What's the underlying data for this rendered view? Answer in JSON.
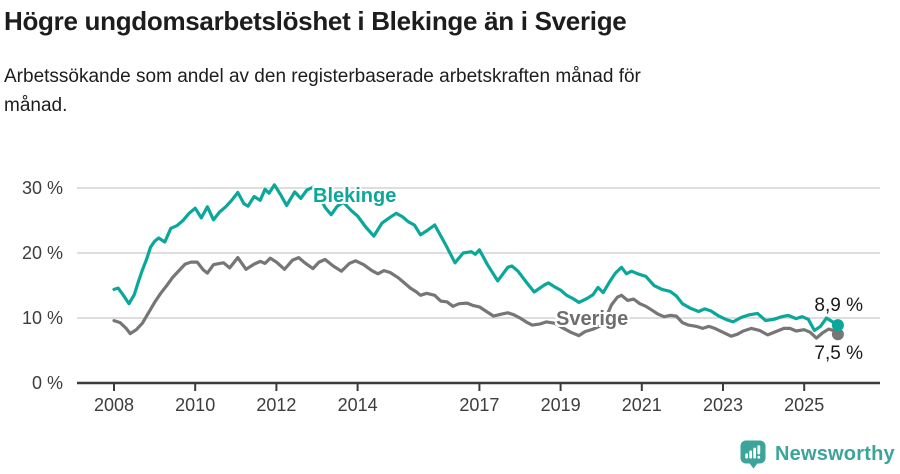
{
  "header": {
    "title": "Högre ungdomsarbetslöshet i Blekinge än i Sverige",
    "subtitle_line1": "Arbetssökande som andel av den registerbaserade arbetskraften månad för",
    "subtitle_line2": "månad."
  },
  "chart_data": {
    "type": "line",
    "unit": "%",
    "grid": "horizontal",
    "x_range": [
      2008,
      2026.0
    ],
    "ylim": [
      0,
      32
    ],
    "x_axis": {
      "ticks": [
        {
          "label": "2008",
          "value": 2008
        },
        {
          "label": "2010",
          "value": 2010
        },
        {
          "label": "2012",
          "value": 2012
        },
        {
          "label": "2014",
          "value": 2014
        },
        {
          "label": "2017",
          "value": 2017
        },
        {
          "label": "2019",
          "value": 2019
        },
        {
          "label": "2021",
          "value": 2021
        },
        {
          "label": "2023",
          "value": 2023
        },
        {
          "label": "2025",
          "value": 2025
        }
      ]
    },
    "y_axis": {
      "ticks": [
        {
          "label": "30 %",
          "value": 30
        },
        {
          "label": "20 %",
          "value": 20
        },
        {
          "label": "10 %",
          "value": 10
        },
        {
          "label": "0 %",
          "value": 0
        }
      ]
    },
    "colors": {
      "blekinge": "#0ca79b",
      "sverige": "#767676",
      "gridline": "#dadada",
      "axis": "#3c3c3c"
    },
    "series": [
      {
        "name": "Blekinge",
        "color": "#0ca79b",
        "end_label": "8,9 %",
        "end_value": 8.9,
        "points": [
          [
            2008.0,
            14.4
          ],
          [
            2008.1,
            14.6
          ],
          [
            2008.22,
            13.6
          ],
          [
            2008.37,
            12.2
          ],
          [
            2008.5,
            13.6
          ],
          [
            2008.6,
            15.6
          ],
          [
            2008.7,
            17.4
          ],
          [
            2008.8,
            19.0
          ],
          [
            2008.9,
            20.9
          ],
          [
            2009.0,
            21.8
          ],
          [
            2009.1,
            22.3
          ],
          [
            2009.25,
            21.7
          ],
          [
            2009.4,
            23.8
          ],
          [
            2009.55,
            24.2
          ],
          [
            2009.7,
            25.0
          ],
          [
            2009.85,
            26.1
          ],
          [
            2010.0,
            26.9
          ],
          [
            2010.15,
            25.4
          ],
          [
            2010.3,
            27.1
          ],
          [
            2010.45,
            25.1
          ],
          [
            2010.6,
            26.3
          ],
          [
            2010.75,
            27.1
          ],
          [
            2010.9,
            28.1
          ],
          [
            2011.05,
            29.3
          ],
          [
            2011.2,
            27.6
          ],
          [
            2011.3,
            27.2
          ],
          [
            2011.45,
            28.7
          ],
          [
            2011.6,
            28.1
          ],
          [
            2011.72,
            29.8
          ],
          [
            2011.82,
            29.2
          ],
          [
            2011.95,
            30.5
          ],
          [
            2012.1,
            29.0
          ],
          [
            2012.25,
            27.3
          ],
          [
            2012.45,
            29.4
          ],
          [
            2012.6,
            28.4
          ],
          [
            2012.75,
            29.7
          ],
          [
            2012.9,
            30.1
          ],
          [
            2013.05,
            28.9
          ],
          [
            2013.2,
            27.0
          ],
          [
            2013.35,
            25.9
          ],
          [
            2013.5,
            27.2
          ],
          [
            2013.65,
            27.8
          ],
          [
            2013.85,
            26.5
          ],
          [
            2014.0,
            25.7
          ],
          [
            2014.2,
            24.0
          ],
          [
            2014.4,
            22.6
          ],
          [
            2014.6,
            24.6
          ],
          [
            2014.8,
            25.5
          ],
          [
            2014.95,
            26.1
          ],
          [
            2015.1,
            25.6
          ],
          [
            2015.25,
            24.8
          ],
          [
            2015.4,
            24.3
          ],
          [
            2015.55,
            22.8
          ],
          [
            2015.7,
            23.4
          ],
          [
            2015.9,
            24.3
          ],
          [
            2016.15,
            21.5
          ],
          [
            2016.4,
            18.5
          ],
          [
            2016.6,
            20.0
          ],
          [
            2016.8,
            20.2
          ],
          [
            2016.9,
            19.8
          ],
          [
            2017.0,
            20.5
          ],
          [
            2017.2,
            18.2
          ],
          [
            2017.45,
            15.7
          ],
          [
            2017.7,
            17.8
          ],
          [
            2017.8,
            18.0
          ],
          [
            2017.95,
            17.2
          ],
          [
            2018.17,
            15.4
          ],
          [
            2018.35,
            14.0
          ],
          [
            2018.6,
            15.1
          ],
          [
            2018.7,
            15.4
          ],
          [
            2018.85,
            14.8
          ],
          [
            2019.0,
            14.3
          ],
          [
            2019.15,
            13.5
          ],
          [
            2019.3,
            13.0
          ],
          [
            2019.45,
            12.4
          ],
          [
            2019.65,
            13.0
          ],
          [
            2019.8,
            13.6
          ],
          [
            2019.92,
            14.7
          ],
          [
            2020.05,
            13.9
          ],
          [
            2020.2,
            15.5
          ],
          [
            2020.35,
            16.9
          ],
          [
            2020.5,
            17.8
          ],
          [
            2020.62,
            16.8
          ],
          [
            2020.75,
            17.2
          ],
          [
            2020.9,
            16.8
          ],
          [
            2021.1,
            16.4
          ],
          [
            2021.3,
            15.0
          ],
          [
            2021.5,
            14.4
          ],
          [
            2021.7,
            14.1
          ],
          [
            2021.85,
            13.4
          ],
          [
            2022.0,
            12.2
          ],
          [
            2022.2,
            11.5
          ],
          [
            2022.4,
            11.0
          ],
          [
            2022.55,
            11.4
          ],
          [
            2022.7,
            11.1
          ],
          [
            2022.9,
            10.3
          ],
          [
            2023.1,
            9.7
          ],
          [
            2023.25,
            9.4
          ],
          [
            2023.45,
            10.1
          ],
          [
            2023.65,
            10.5
          ],
          [
            2023.85,
            10.7
          ],
          [
            2024.05,
            9.6
          ],
          [
            2024.25,
            9.8
          ],
          [
            2024.45,
            10.2
          ],
          [
            2024.6,
            10.4
          ],
          [
            2024.8,
            9.9
          ],
          [
            2024.95,
            10.2
          ],
          [
            2025.1,
            9.8
          ],
          [
            2025.25,
            8.1
          ],
          [
            2025.4,
            8.7
          ],
          [
            2025.55,
            10.0
          ],
          [
            2025.7,
            9.4
          ],
          [
            2025.83,
            8.9
          ]
        ]
      },
      {
        "name": "Sverige",
        "color": "#767676",
        "end_label": "7,5 %",
        "end_value": 7.5,
        "points": [
          [
            2008.0,
            9.6
          ],
          [
            2008.15,
            9.3
          ],
          [
            2008.3,
            8.4
          ],
          [
            2008.4,
            7.6
          ],
          [
            2008.55,
            8.2
          ],
          [
            2008.7,
            9.2
          ],
          [
            2008.85,
            10.8
          ],
          [
            2009.0,
            12.4
          ],
          [
            2009.15,
            13.8
          ],
          [
            2009.3,
            15.0
          ],
          [
            2009.45,
            16.3
          ],
          [
            2009.6,
            17.3
          ],
          [
            2009.75,
            18.3
          ],
          [
            2009.9,
            18.6
          ],
          [
            2010.05,
            18.6
          ],
          [
            2010.2,
            17.4
          ],
          [
            2010.3,
            16.9
          ],
          [
            2010.45,
            18.2
          ],
          [
            2010.6,
            18.4
          ],
          [
            2010.7,
            18.5
          ],
          [
            2010.85,
            17.7
          ],
          [
            2011.05,
            19.3
          ],
          [
            2011.25,
            17.5
          ],
          [
            2011.45,
            18.3
          ],
          [
            2011.6,
            18.7
          ],
          [
            2011.72,
            18.4
          ],
          [
            2011.85,
            19.2
          ],
          [
            2012.0,
            18.6
          ],
          [
            2012.2,
            17.5
          ],
          [
            2012.4,
            18.9
          ],
          [
            2012.55,
            19.3
          ],
          [
            2012.7,
            18.5
          ],
          [
            2012.9,
            17.6
          ],
          [
            2013.05,
            18.6
          ],
          [
            2013.2,
            19.0
          ],
          [
            2013.4,
            18.0
          ],
          [
            2013.6,
            17.2
          ],
          [
            2013.8,
            18.4
          ],
          [
            2013.95,
            18.8
          ],
          [
            2014.15,
            18.2
          ],
          [
            2014.35,
            17.3
          ],
          [
            2014.5,
            16.8
          ],
          [
            2014.65,
            17.3
          ],
          [
            2014.8,
            17.0
          ],
          [
            2015.0,
            16.2
          ],
          [
            2015.15,
            15.4
          ],
          [
            2015.3,
            14.6
          ],
          [
            2015.45,
            14.0
          ],
          [
            2015.55,
            13.5
          ],
          [
            2015.7,
            13.8
          ],
          [
            2015.9,
            13.5
          ],
          [
            2016.05,
            12.6
          ],
          [
            2016.2,
            12.5
          ],
          [
            2016.35,
            11.8
          ],
          [
            2016.5,
            12.2
          ],
          [
            2016.7,
            12.3
          ],
          [
            2016.85,
            11.9
          ],
          [
            2017.0,
            11.7
          ],
          [
            2017.15,
            11.1
          ],
          [
            2017.35,
            10.3
          ],
          [
            2017.55,
            10.6
          ],
          [
            2017.7,
            10.8
          ],
          [
            2017.85,
            10.5
          ],
          [
            2018.0,
            10.0
          ],
          [
            2018.15,
            9.4
          ],
          [
            2018.3,
            8.9
          ],
          [
            2018.5,
            9.1
          ],
          [
            2018.65,
            9.4
          ],
          [
            2018.85,
            9.2
          ],
          [
            2019.05,
            8.5
          ],
          [
            2019.25,
            7.8
          ],
          [
            2019.45,
            7.3
          ],
          [
            2019.6,
            7.9
          ],
          [
            2019.8,
            8.3
          ],
          [
            2019.95,
            8.7
          ],
          [
            2020.1,
            9.8
          ],
          [
            2020.25,
            12.0
          ],
          [
            2020.4,
            13.2
          ],
          [
            2020.5,
            13.5
          ],
          [
            2020.65,
            12.7
          ],
          [
            2020.8,
            12.9
          ],
          [
            2020.95,
            12.2
          ],
          [
            2021.1,
            11.8
          ],
          [
            2021.25,
            11.2
          ],
          [
            2021.4,
            10.6
          ],
          [
            2021.55,
            10.2
          ],
          [
            2021.7,
            10.4
          ],
          [
            2021.85,
            10.3
          ],
          [
            2022.0,
            9.3
          ],
          [
            2022.15,
            8.9
          ],
          [
            2022.35,
            8.7
          ],
          [
            2022.5,
            8.4
          ],
          [
            2022.65,
            8.7
          ],
          [
            2022.8,
            8.4
          ],
          [
            2023.0,
            7.8
          ],
          [
            2023.2,
            7.2
          ],
          [
            2023.35,
            7.5
          ],
          [
            2023.5,
            8.0
          ],
          [
            2023.7,
            8.4
          ],
          [
            2023.9,
            8.1
          ],
          [
            2024.1,
            7.4
          ],
          [
            2024.3,
            7.9
          ],
          [
            2024.5,
            8.4
          ],
          [
            2024.65,
            8.4
          ],
          [
            2024.8,
            8.0
          ],
          [
            2025.0,
            8.2
          ],
          [
            2025.15,
            7.8
          ],
          [
            2025.3,
            6.9
          ],
          [
            2025.45,
            7.7
          ],
          [
            2025.6,
            8.3
          ],
          [
            2025.72,
            8.1
          ],
          [
            2025.83,
            7.5
          ]
        ]
      }
    ]
  },
  "footer": {
    "brand": "Newsworthy",
    "brand_color": "#3da49c",
    "logo_icon": "newsworthy-speech-bubble-bar-chart-icon"
  }
}
